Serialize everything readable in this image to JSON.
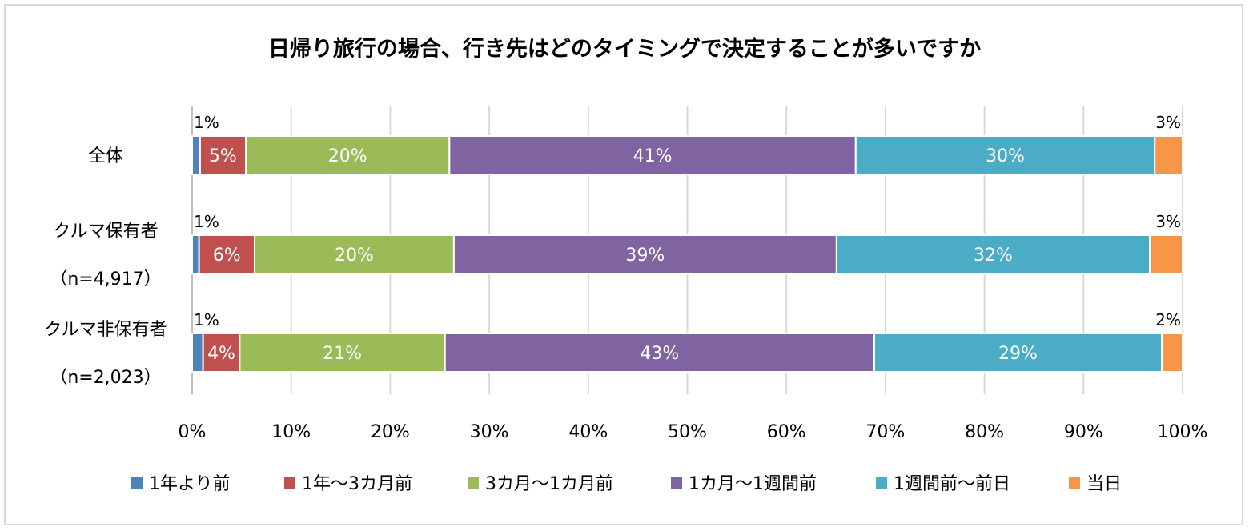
{
  "chart_data": {
    "type": "bar",
    "orientation": "horizontal",
    "stacked": true,
    "title": "日帰り旅行の場合、行き先はどのタイミングで決定することが多いですか",
    "categories": [
      {
        "lines": [
          "全体"
        ]
      },
      {
        "lines": [
          "クルマ保有者",
          "（n=4,917）"
        ]
      },
      {
        "lines": [
          "クルマ非保有者",
          "（n=2,023）"
        ]
      }
    ],
    "series": [
      {
        "name": "1年より前",
        "color": "#4f81bd",
        "values": [
          0.8,
          0.7,
          1.1
        ],
        "labels": [
          "1%",
          "1%",
          "1%"
        ],
        "label_pos": "outside"
      },
      {
        "name": "1年～3カ月前",
        "color": "#c0504d",
        "values": [
          4.6,
          5.6,
          3.7
        ],
        "labels": [
          "5%",
          "6%",
          "4%"
        ],
        "label_pos": "inside"
      },
      {
        "name": "3カ月～1カ月前",
        "color": "#9bbb59",
        "values": [
          20.5,
          20.1,
          20.7
        ],
        "labels": [
          "20%",
          "20%",
          "21%"
        ],
        "label_pos": "inside"
      },
      {
        "name": "1カ月～1週間前",
        "color": "#8064a2",
        "values": [
          40.9,
          38.6,
          43.3
        ],
        "labels": [
          "41%",
          "39%",
          "43%"
        ],
        "label_pos": "inside"
      },
      {
        "name": "1週間前～前日",
        "color": "#4bacc6",
        "values": [
          30.1,
          31.6,
          29.0
        ],
        "labels": [
          "30%",
          "32%",
          "29%"
        ],
        "label_pos": "inside"
      },
      {
        "name": "当日",
        "color": "#f79646",
        "values": [
          2.8,
          3.3,
          2.1
        ],
        "labels": [
          "3%",
          "3%",
          "2%"
        ],
        "label_pos": "outside"
      }
    ],
    "xlim": [
      0,
      100
    ],
    "xticks": [
      "0%",
      "10%",
      "20%",
      "30%",
      "40%",
      "50%",
      "60%",
      "70%",
      "80%",
      "90%",
      "100%"
    ],
    "grid": true,
    "legend_position": "bottom"
  }
}
